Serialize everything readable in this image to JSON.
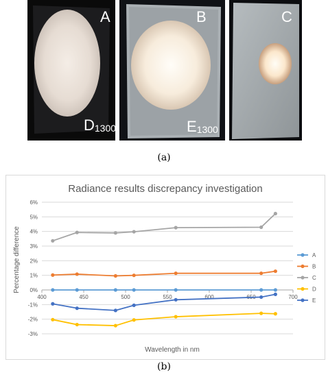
{
  "figure": {
    "panels": [
      {
        "letter": "A",
        "label_main": "D",
        "label_sub": "1300"
      },
      {
        "letter": "B",
        "label_main": "E",
        "label_sub": "1300"
      },
      {
        "letter": "C"
      }
    ],
    "caption_a": "(a)",
    "caption_b": "(b)"
  },
  "chart_data": {
    "type": "line",
    "title": "Radiance results discrepancy investigation",
    "xlabel": "Wavelength in nm",
    "ylabel": "Percentage difference",
    "xlim": [
      400,
      700
    ],
    "ylim": [
      -3,
      6
    ],
    "x_ticks": [
      400,
      450,
      500,
      550,
      600,
      650,
      700
    ],
    "y_ticks": [
      "-3%",
      "-2%",
      "-1%",
      "0%",
      "1%",
      "2%",
      "3%",
      "4%",
      "5%",
      "6%"
    ],
    "grid": true,
    "legend_position": "right",
    "x": [
      413,
      442,
      488,
      510,
      560,
      662,
      679
    ],
    "series": [
      {
        "name": "A",
        "color": "#5b9bd5",
        "values": [
          0,
          0,
          0,
          0,
          0,
          0,
          0
        ]
      },
      {
        "name": "B",
        "color": "#ed7d31",
        "values": [
          1.02,
          1.08,
          0.96,
          1.0,
          1.14,
          1.14,
          1.28
        ]
      },
      {
        "name": "C",
        "color": "#a5a5a5",
        "values": [
          3.36,
          3.93,
          3.9,
          3.98,
          4.26,
          4.29,
          5.22
        ]
      },
      {
        "name": "D",
        "color": "#ffc000",
        "values": [
          -2.03,
          -2.37,
          -2.44,
          -2.05,
          -1.83,
          -1.6,
          -1.63
        ]
      },
      {
        "name": "E",
        "color": "#4472c4",
        "values": [
          -0.95,
          -1.25,
          -1.4,
          -1.05,
          -0.67,
          -0.49,
          -0.3
        ]
      }
    ]
  }
}
